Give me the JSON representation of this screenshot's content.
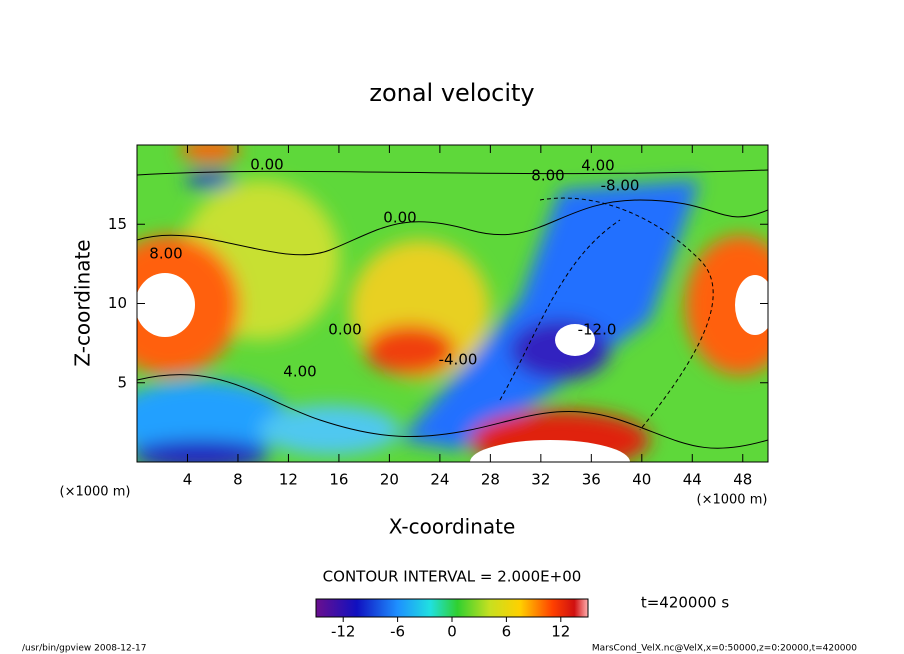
{
  "chart_data": {
    "type": "contour",
    "title": "zonal velocity",
    "xlabel": "X-coordinate",
    "ylabel": "Z-coordinate",
    "x_unit": "(×1000 m)",
    "y_unit": "(×1000 m)",
    "xlim": [
      0,
      50
    ],
    "xticks": [
      4,
      8,
      12,
      16,
      20,
      24,
      28,
      32,
      36,
      40,
      44,
      48
    ],
    "ylim": [
      0,
      20
    ],
    "yticks": [
      5,
      10,
      15
    ],
    "contour_interval": "CONTOUR INTERVAL = 2.000E+00",
    "clim": [
      -15,
      15
    ],
    "colorbar_ticks": [
      -12,
      -6,
      0,
      6,
      12
    ],
    "time": "t=420000 s",
    "contour_labels": [
      "0.00",
      "4.00",
      "8.00",
      "-8.00",
      "-4.00",
      "0.00",
      "4.00",
      "8.00",
      "0.00",
      "-12.0"
    ],
    "footer_left": "/usr/bin/gpview  2008-12-17",
    "footer_right": "MarsCond_VelX.nc@VelX,x=0:50000,z=0:20000,t=420000"
  }
}
